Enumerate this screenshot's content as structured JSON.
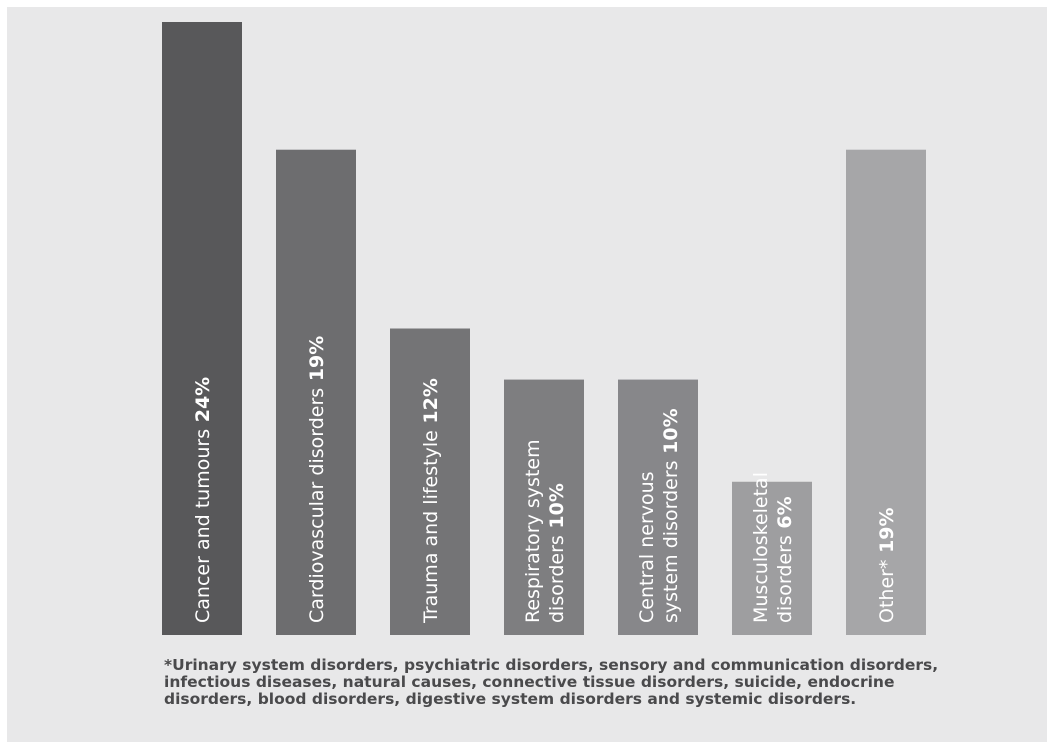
{
  "chart_data": {
    "type": "bar",
    "orientation": "vertical",
    "categories": [
      "Cancer and tumours",
      "Cardiovascular disorders",
      "Trauma and lifestyle",
      "Respiratory system disorders",
      "Central nervous system disorders",
      "Musculoskeletal disorders",
      "Other*"
    ],
    "label_lines": [
      [
        "Cancer and tumours 24%"
      ],
      [
        "Cardiovascular disorders 19%"
      ],
      [
        "Trauma and lifestyle 12%"
      ],
      [
        "Respiratory system",
        "disorders 10%"
      ],
      [
        "Central nervous",
        "system disorders 10%"
      ],
      [
        "Musculoskeletal",
        "disorders 6%"
      ],
      [
        "Other* 19%"
      ]
    ],
    "values": [
      24,
      19,
      12,
      10,
      10,
      6,
      19
    ],
    "unit": "%",
    "colors": [
      "#58585a",
      "#6d6d6f",
      "#747476",
      "#7e7e80",
      "#87878a",
      "#9e9ea0",
      "#a6a6a8"
    ],
    "ylim": [
      0,
      24
    ],
    "grid": false,
    "legend": "none"
  },
  "footnote": "*Urinary system disorders, psychiatric disorders, sensory and communication disorders, infectious diseases, natural causes, connective tissue disorders, suicide, endocrine disorders, blood disorders, digestive system disorders and systemic disorders.",
  "colors": {
    "background": "#e8e8e9",
    "label_text": "#ffffff",
    "footnote_text": "#4a4a4c"
  }
}
